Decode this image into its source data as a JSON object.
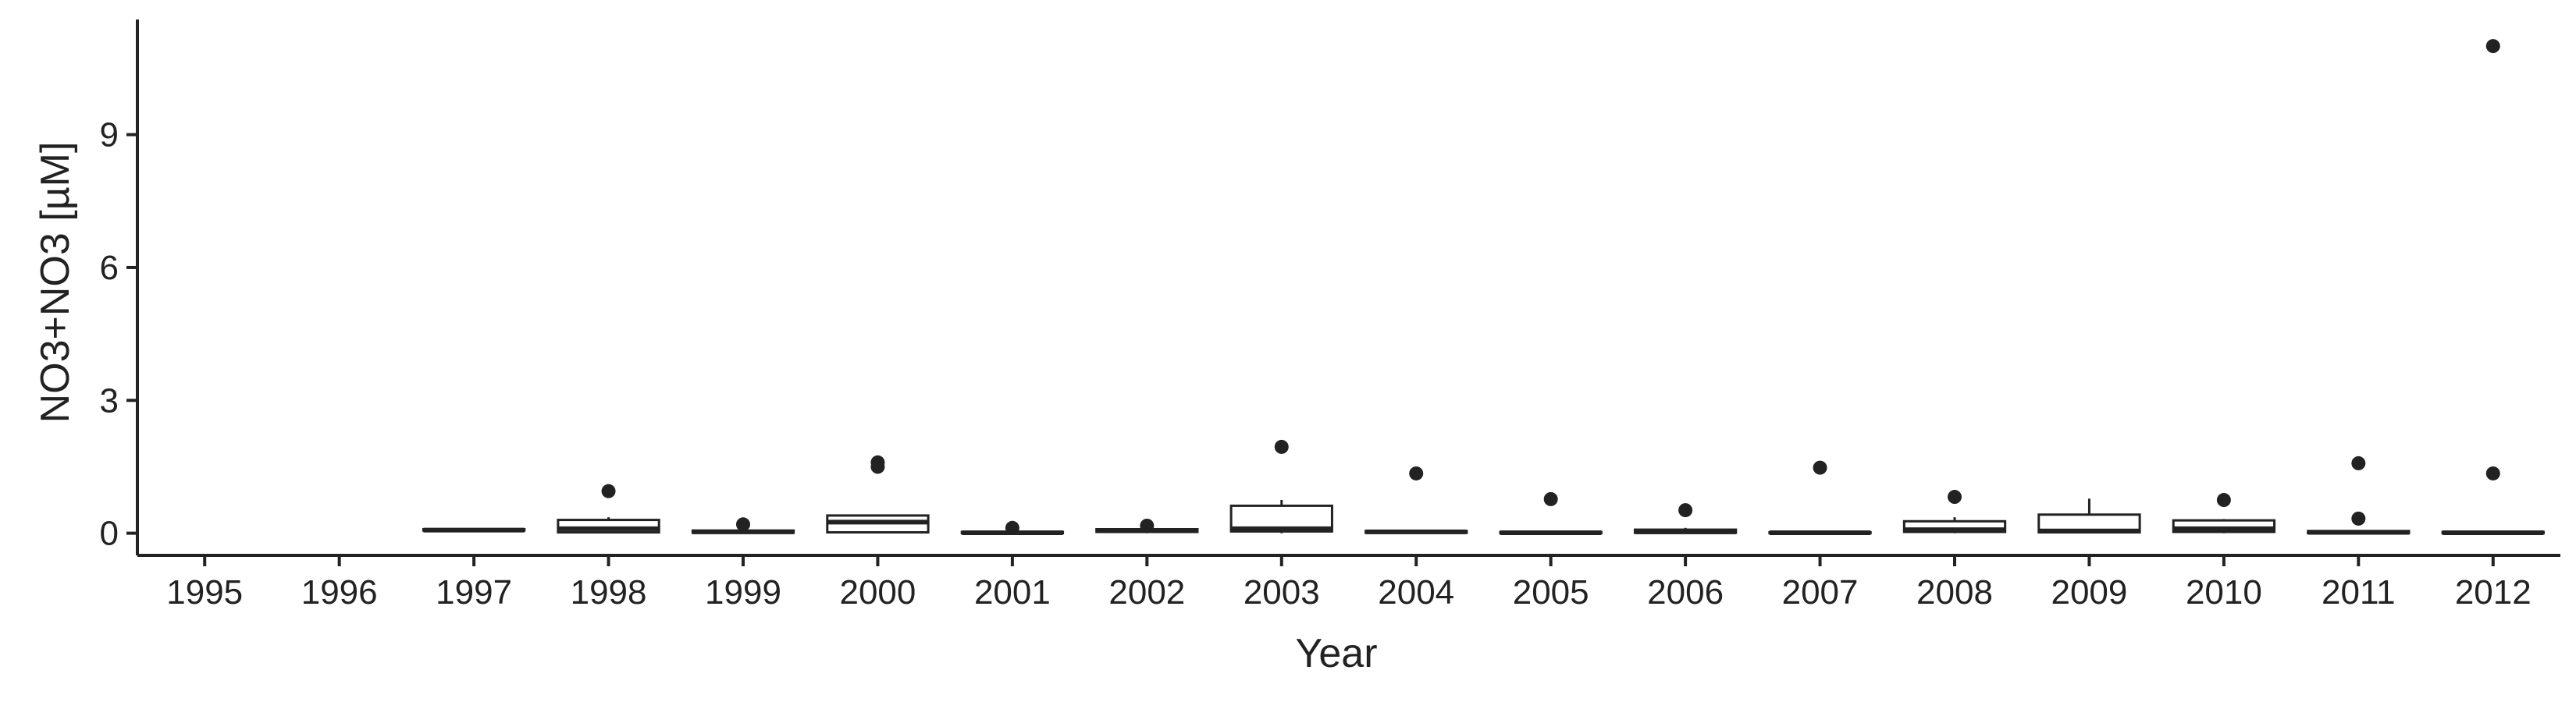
{
  "chart_data": {
    "type": "box",
    "title": "",
    "xlabel": "Year",
    "ylabel": "NO3+NO3 [µM]",
    "ylim": [
      -0.5,
      11.6
    ],
    "yticks": [
      0,
      3,
      6,
      9
    ],
    "y_tick_labels": [
      "0",
      "3",
      "6",
      "9"
    ],
    "grid": false,
    "legend": "none",
    "categories": [
      "1995",
      "1996",
      "1997",
      "1998",
      "1999",
      "2000",
      "2001",
      "2002",
      "2003",
      "2004",
      "2005",
      "2006",
      "2007",
      "2008",
      "2009",
      "2010",
      "2011",
      "2012"
    ],
    "boxes": [
      null,
      null,
      {
        "min": 0.04,
        "q1": 0.06,
        "median": 0.07,
        "q3": 0.09,
        "max": 0.11,
        "outliers": []
      },
      {
        "min": 0.0,
        "q1": 0.02,
        "median": 0.1,
        "q3": 0.3,
        "max": 0.36,
        "outliers": [
          0.95
        ]
      },
      {
        "min": 0.0,
        "q1": 0.01,
        "median": 0.03,
        "q3": 0.06,
        "max": 0.08,
        "outliers": [
          0.2
        ]
      },
      {
        "min": 0.0,
        "q1": 0.02,
        "median": 0.25,
        "q3": 0.4,
        "max": 0.42,
        "outliers": [
          1.5,
          1.6
        ]
      },
      {
        "min": 0.0,
        "q1": 0.0,
        "median": 0.01,
        "q3": 0.03,
        "max": 0.05,
        "outliers": [
          0.12
        ]
      },
      {
        "min": 0.0,
        "q1": 0.03,
        "median": 0.06,
        "q3": 0.09,
        "max": 0.11,
        "outliers": [
          0.17
        ]
      },
      {
        "min": 0.0,
        "q1": 0.04,
        "median": 0.1,
        "q3": 0.62,
        "max": 0.75,
        "outliers": [
          1.95
        ]
      },
      {
        "min": 0.0,
        "q1": 0.01,
        "median": 0.03,
        "q3": 0.05,
        "max": 0.07,
        "outliers": [
          1.35
        ]
      },
      {
        "min": 0.0,
        "q1": 0.0,
        "median": 0.01,
        "q3": 0.03,
        "max": 0.04,
        "outliers": [
          0.77
        ]
      },
      {
        "min": 0.0,
        "q1": 0.01,
        "median": 0.03,
        "q3": 0.08,
        "max": 0.12,
        "outliers": [
          0.52
        ]
      },
      {
        "min": 0.0,
        "q1": 0.0,
        "median": 0.01,
        "q3": 0.02,
        "max": 0.03,
        "outliers": [
          1.48
        ]
      },
      {
        "min": 0.0,
        "q1": 0.03,
        "median": 0.08,
        "q3": 0.27,
        "max": 0.36,
        "outliers": [
          0.82
        ]
      },
      {
        "min": 0.0,
        "q1": 0.02,
        "median": 0.05,
        "q3": 0.42,
        "max": 0.78,
        "outliers": []
      },
      {
        "min": 0.0,
        "q1": 0.03,
        "median": 0.1,
        "q3": 0.29,
        "max": 0.32,
        "outliers": [
          0.75
        ]
      },
      {
        "min": 0.0,
        "q1": 0.0,
        "median": 0.02,
        "q3": 0.05,
        "max": 0.07,
        "outliers": [
          0.33,
          1.58
        ]
      },
      {
        "min": 0.0,
        "q1": 0.0,
        "median": 0.01,
        "q3": 0.03,
        "max": 0.04,
        "outliers": [
          1.35,
          11.0
        ]
      }
    ]
  }
}
